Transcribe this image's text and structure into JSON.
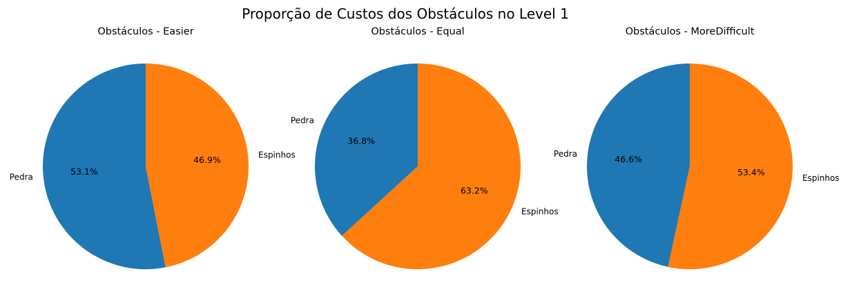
{
  "figure": {
    "suptitle": "Proporção de Custos dos Obstáculos no Level 1"
  },
  "colors": {
    "Pedra": "#1f77b4",
    "Espinhos": "#ff7f0e"
  },
  "chart_data": [
    {
      "type": "pie",
      "title": "Obstáculos - Easier",
      "labels": [
        "Pedra",
        "Espinhos"
      ],
      "values": [
        53.1,
        46.9
      ],
      "pct_labels": [
        "53.1%",
        "46.9%"
      ]
    },
    {
      "type": "pie",
      "title": "Obstáculos - Equal",
      "labels": [
        "Pedra",
        "Espinhos"
      ],
      "values": [
        36.8,
        63.2
      ],
      "pct_labels": [
        "36.8%",
        "63.2%"
      ]
    },
    {
      "type": "pie",
      "title": "Obstáculos - MoreDifficult",
      "labels": [
        "Pedra",
        "Espinhos"
      ],
      "values": [
        46.6,
        53.4
      ],
      "pct_labels": [
        "46.6%",
        "53.4%"
      ]
    }
  ]
}
